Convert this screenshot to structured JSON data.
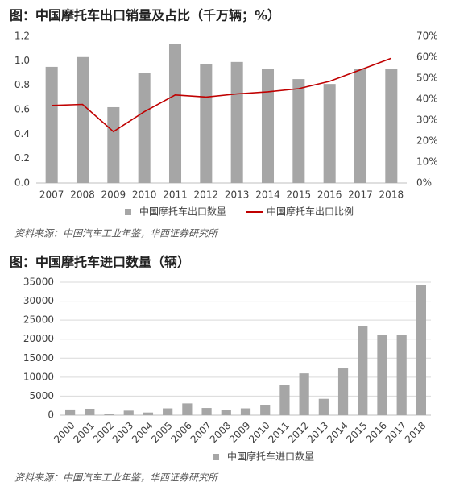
{
  "chart_data": [
    {
      "type": "bar",
      "title": "图：中国摩托车出口销量及占比（千万辆；%）",
      "categories": [
        "2007",
        "2008",
        "2009",
        "2010",
        "2011",
        "2012",
        "2013",
        "2014",
        "2015",
        "2016",
        "2017",
        "2018"
      ],
      "series": [
        {
          "name": "中国摩托车出口数量",
          "color": "#a6a6a6",
          "values": [
            0.95,
            1.03,
            0.62,
            0.9,
            1.14,
            0.97,
            0.99,
            0.93,
            0.85,
            0.81,
            0.93,
            0.93
          ]
        },
        {
          "name": "中国摩托车出口比例",
          "color": "#c00000",
          "type": "line",
          "axis": "y2",
          "values": [
            37,
            37.5,
            24.5,
            34,
            42,
            41,
            42.5,
            43.5,
            45,
            48.5,
            54,
            59.5
          ]
        }
      ],
      "ylim": [
        0,
        1.2
      ],
      "yticks": [
        {
          "value": 0,
          "label": "0.0"
        },
        {
          "value": 0.2,
          "label": "0.2"
        },
        {
          "value": 0.4,
          "label": "0.4"
        },
        {
          "value": 0.6,
          "label": "0.6"
        },
        {
          "value": 0.8,
          "label": "0.8"
        },
        {
          "value": 1,
          "label": "1.0"
        },
        {
          "value": 1.2,
          "label": "1.2"
        }
      ],
      "y2lim": [
        0,
        70
      ],
      "y2ticks": [
        {
          "value": 0,
          "label": "0%"
        },
        {
          "value": 10,
          "label": "10%"
        },
        {
          "value": 20,
          "label": "20%"
        },
        {
          "value": 30,
          "label": "30%"
        },
        {
          "value": 40,
          "label": "40%"
        },
        {
          "value": 50,
          "label": "50%"
        },
        {
          "value": 60,
          "label": "60%"
        },
        {
          "value": 70,
          "label": "70%"
        }
      ],
      "grid": false,
      "source": "资料来源：中国汽车工业年鉴，华西证券研究所"
    },
    {
      "type": "bar",
      "title": "图：中国摩托车进口数量（辆）",
      "categories": [
        "2000",
        "2001",
        "2002",
        "2003",
        "2004",
        "2005",
        "2006",
        "2007",
        "2008",
        "2009",
        "2010",
        "2011",
        "2012",
        "2013",
        "2014",
        "2015",
        "2016",
        "2017",
        "2018"
      ],
      "series": [
        {
          "name": "中国摩托车进口数量",
          "color": "#a6a6a6",
          "values": [
            1500,
            1700,
            300,
            1200,
            700,
            1800,
            3100,
            1900,
            1400,
            1800,
            2700,
            8000,
            11000,
            4300,
            12300,
            23400,
            21000,
            21000,
            34200
          ]
        }
      ],
      "ylim": [
        0,
        35000
      ],
      "yticks": [
        0,
        5000,
        10000,
        15000,
        20000,
        25000,
        30000,
        35000
      ],
      "grid": true,
      "source": "资料来源：中国汽车工业年鉴，华西证券研究所"
    }
  ]
}
